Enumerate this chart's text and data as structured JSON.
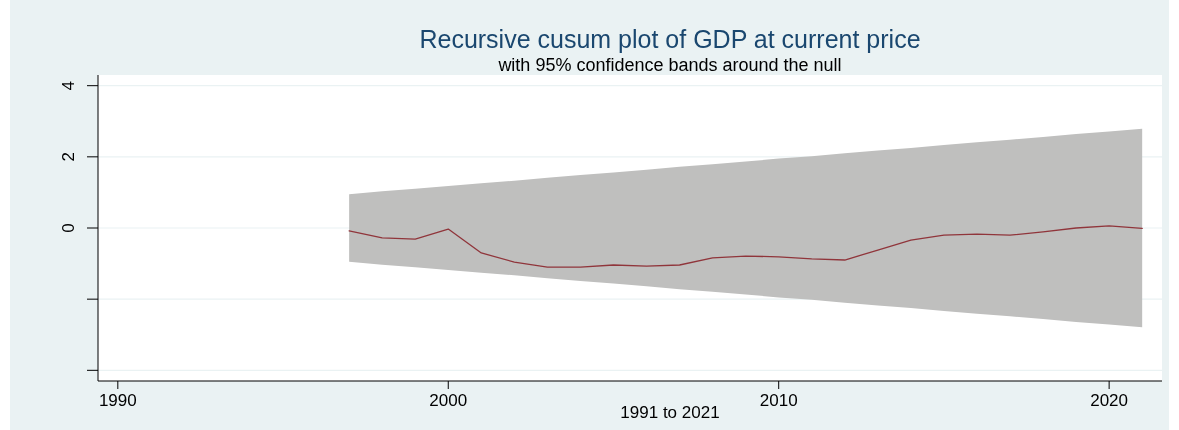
{
  "chart_data": {
    "type": "line",
    "title": "Recursive cusum plot of GDP at current price",
    "subtitle": "with 95% confidence bands around the null",
    "xlabel": "1991 to 2021",
    "x": [
      1997,
      1998,
      1999,
      2000,
      2001,
      2002,
      2003,
      2004,
      2005,
      2006,
      2007,
      2008,
      2009,
      2010,
      2011,
      2012,
      2013,
      2014,
      2015,
      2016,
      2017,
      2018,
      2019,
      2020,
      2021
    ],
    "series": [
      {
        "color": "#90353b",
        "values": [
          -0.08,
          -0.28,
          -0.31,
          -0.03,
          -0.7,
          -0.96,
          -1.1,
          -1.1,
          -1.04,
          -1.07,
          -1.04,
          -0.84,
          -0.79,
          -0.81,
          -0.87,
          -0.9,
          -0.62,
          -0.34,
          -0.2,
          -0.17,
          -0.2,
          -0.11,
          0,
          0.06,
          -0.01
        ],
        "upper": [
          0.95,
          1.03,
          1.1,
          1.18,
          1.26,
          1.33,
          1.41,
          1.49,
          1.56,
          1.64,
          1.72,
          1.79,
          1.87,
          1.95,
          2.02,
          2.1,
          2.18,
          2.25,
          2.33,
          2.41,
          2.48,
          2.56,
          2.64,
          2.71,
          2.79
        ],
        "lower": [
          -0.95,
          -1.03,
          -1.1,
          -1.18,
          -1.26,
          -1.33,
          -1.41,
          -1.49,
          -1.56,
          -1.64,
          -1.72,
          -1.79,
          -1.87,
          -1.95,
          -2.02,
          -2.1,
          -2.18,
          -2.25,
          -2.33,
          -2.41,
          -2.48,
          -2.56,
          -2.64,
          -2.71,
          -2.79
        ]
      }
    ],
    "xlim": [
      1989.4,
      2021.6
    ],
    "xticks": [
      1990,
      2000,
      2010,
      2020
    ],
    "ylim": [
      -4.3,
      4.3
    ],
    "yticks": [
      {
        "value": -4,
        "label": null
      },
      {
        "value": -2,
        "label": null
      },
      0,
      2,
      4
    ],
    "grid": "y"
  }
}
